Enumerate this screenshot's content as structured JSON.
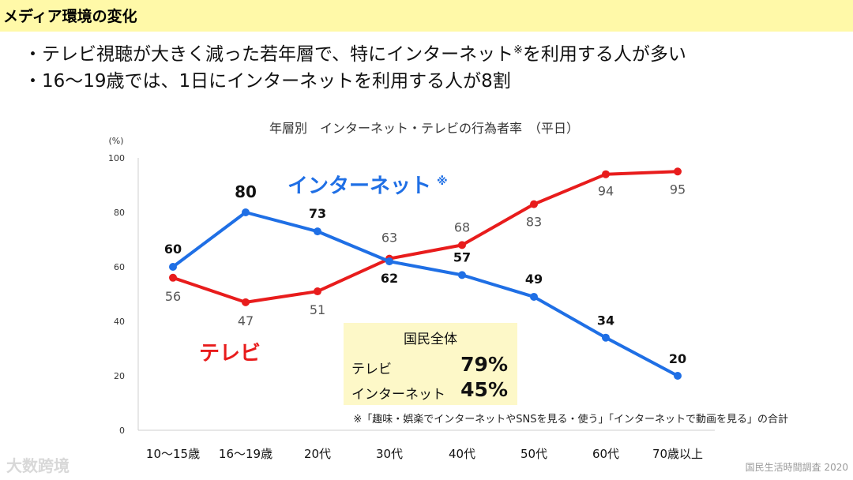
{
  "header": {
    "title": "メディア環境の変化"
  },
  "bullets": [
    {
      "text": "・テレビ視聴が大きく減った若年層で、特にインターネット",
      "mark": "※",
      "text_after": "を利用する人が多い"
    },
    {
      "text": "・16〜19歳では、1日にインターネットを利用する人が8割"
    }
  ],
  "summary": {
    "title": "国民全体",
    "rows": [
      {
        "label": "テレビ",
        "value": "79%"
      },
      {
        "label": "インターネット",
        "value": "45%"
      }
    ]
  },
  "watermark": "大数跨境",
  "source": "国民生活時間調査 2020",
  "colors": {
    "internet": "#1f6fe5",
    "tv": "#e81c1c",
    "header_bg": "#fff9a8",
    "box_bg": "#fdf8c8"
  },
  "chart_data": {
    "type": "line",
    "title": "年層別　インターネット・テレビの行為者率　（平日）",
    "y_unit": "(%)",
    "ylim": [
      0,
      100
    ],
    "yticks": [
      0,
      20,
      40,
      60,
      80,
      100
    ],
    "categories": [
      "10〜15歳",
      "16〜19歳",
      "20代",
      "30代",
      "40代",
      "50代",
      "60代",
      "70歳以上"
    ],
    "series": [
      {
        "name": "インターネット",
        "legend_mark": "※",
        "values": [
          60,
          80,
          73,
          62,
          57,
          49,
          34,
          20
        ]
      },
      {
        "name": "テレビ",
        "values": [
          56,
          47,
          51,
          63,
          68,
          83,
          94,
          95
        ]
      }
    ],
    "note": "※「趣味・娯楽でインターネットやSNSを見る・使う」「インターネットで動画を見る」の合計"
  }
}
